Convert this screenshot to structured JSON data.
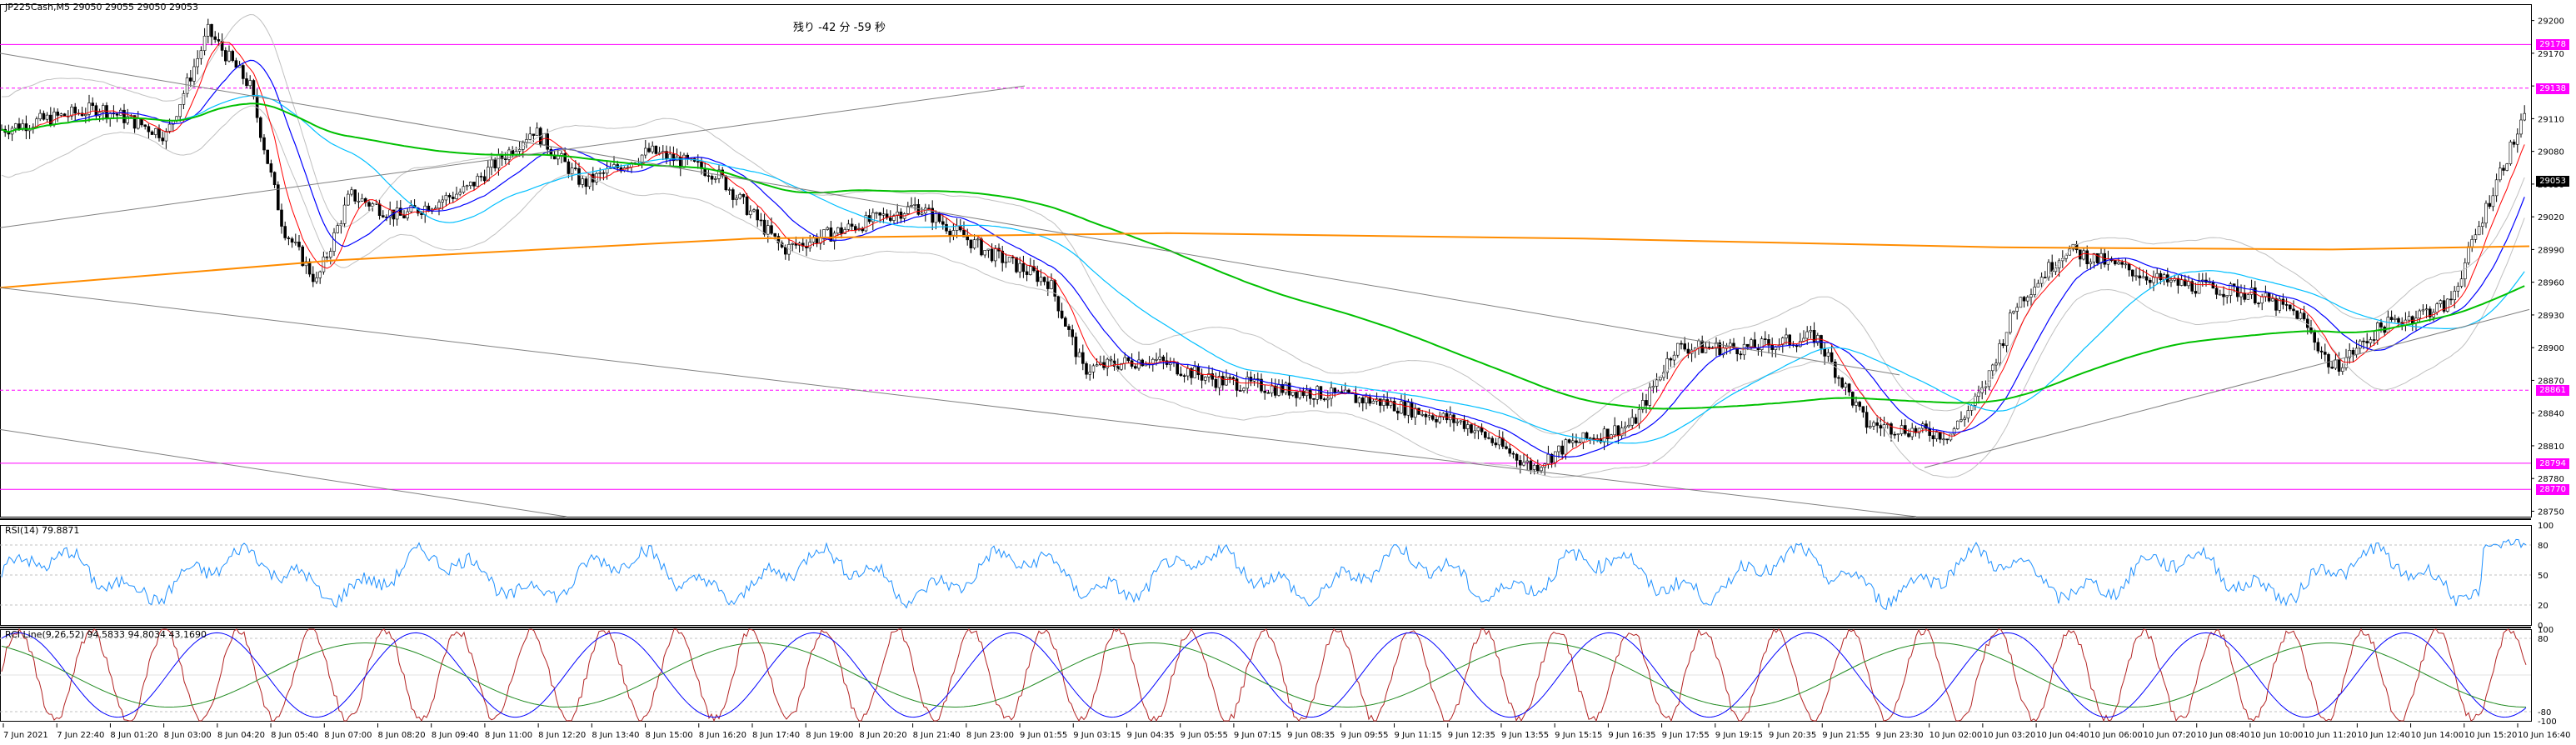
{
  "main_chart": {
    "symbol_info": "JP225Cash,M5  29050 29055 29050 29053",
    "countdown": "残り -42 分 -59 秒",
    "price_axis": [
      "29200",
      "29170",
      "29140",
      "29110",
      "29080",
      "29050",
      "29020",
      "28990",
      "28960",
      "28930",
      "28900",
      "28870",
      "28840",
      "28810",
      "28780",
      "28750"
    ],
    "horizontal_levels": [
      {
        "label": "29178",
        "color": "#ff00ff",
        "style": "solid"
      },
      {
        "label": "29138",
        "color": "#ff00ff",
        "style": "dashed"
      },
      {
        "label": "28861",
        "color": "#ff00ff",
        "style": "dashed"
      },
      {
        "label": "28794",
        "color": "#ff00ff",
        "style": "solid"
      },
      {
        "label": "28770",
        "color": "#ff00ff",
        "style": "solid"
      }
    ],
    "current_price": "29053",
    "ylim": [
      28745,
      29215
    ],
    "colors": {
      "candle": "#000000",
      "ma_fast": "#ff0000",
      "ma_mid": "#0000ff",
      "ma_slow": "#00bfff",
      "ma_green": "#00c000",
      "ma_orange": "#ff8c00",
      "bollinger": "#c0c0c0",
      "trendline": "#808080"
    }
  },
  "rsi_panel": {
    "label": "RSI(14) 79.8871",
    "axis": [
      "100",
      "80",
      "50",
      "20",
      "0"
    ],
    "color": "#1e90ff"
  },
  "rci_panel": {
    "label": "RCI Line(9,26,52) 94.5833 94.8034 43.1690",
    "axis": [
      "100",
      "80",
      "-80",
      "-100"
    ],
    "colors": [
      "#b22222",
      "#0000ff",
      "#228b22"
    ]
  },
  "time_axis": [
    "7 Jun 2021",
    "7 Jun 22:40",
    "8 Jun 01:20",
    "8 Jun 03:00",
    "8 Jun 04:20",
    "8 Jun 05:40",
    "8 Jun 07:00",
    "8 Jun 08:20",
    "8 Jun 09:40",
    "8 Jun 11:00",
    "8 Jun 12:20",
    "8 Jun 13:40",
    "8 Jun 15:00",
    "8 Jun 16:20",
    "8 Jun 17:40",
    "8 Jun 19:00",
    "8 Jun 20:20",
    "8 Jun 21:40",
    "8 Jun 23:00",
    "9 Jun 01:55",
    "9 Jun 03:15",
    "9 Jun 04:35",
    "9 Jun 05:55",
    "9 Jun 07:15",
    "9 Jun 08:35",
    "9 Jun 09:55",
    "9 Jun 11:15",
    "9 Jun 12:35",
    "9 Jun 13:55",
    "9 Jun 15:15",
    "9 Jun 16:35",
    "9 Jun 17:55",
    "9 Jun 19:15",
    "9 Jun 20:35",
    "9 Jun 21:55",
    "9 Jun 23:30",
    "10 Jun 02:00",
    "10 Jun 03:20",
    "10 Jun 04:40",
    "10 Jun 06:00",
    "10 Jun 07:20",
    "10 Jun 08:40",
    "10 Jun 10:00",
    "10 Jun 11:20",
    "10 Jun 12:40",
    "10 Jun 14:00",
    "10 Jun 15:20",
    "10 Jun 16:40"
  ]
}
